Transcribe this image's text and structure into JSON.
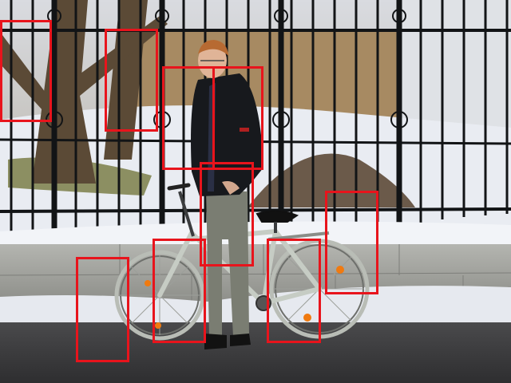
{
  "photo": {
    "subject": "person-with-bicycle",
    "colors": {
      "box": "#e8141c",
      "sky": "#c8ccd2",
      "fence": "#121416",
      "snow": "#eef1f6",
      "wall": "#a8a9a5",
      "road": "#3a3a3c",
      "jacket": "#17191d",
      "trousers": "#7a7d72",
      "bike_frame": "#c6ccc4",
      "reflector": "#f07a10"
    }
  },
  "annotations": {
    "count": 9,
    "boxes": [
      {
        "id": "box-1",
        "label": ""
      },
      {
        "id": "box-2",
        "label": ""
      },
      {
        "id": "box-3",
        "label": ""
      },
      {
        "id": "box-4",
        "label": ""
      },
      {
        "id": "box-5",
        "label": ""
      },
      {
        "id": "box-6",
        "label": ""
      },
      {
        "id": "box-7",
        "label": ""
      },
      {
        "id": "box-8",
        "label": ""
      },
      {
        "id": "box-9",
        "label": ""
      }
    ]
  }
}
